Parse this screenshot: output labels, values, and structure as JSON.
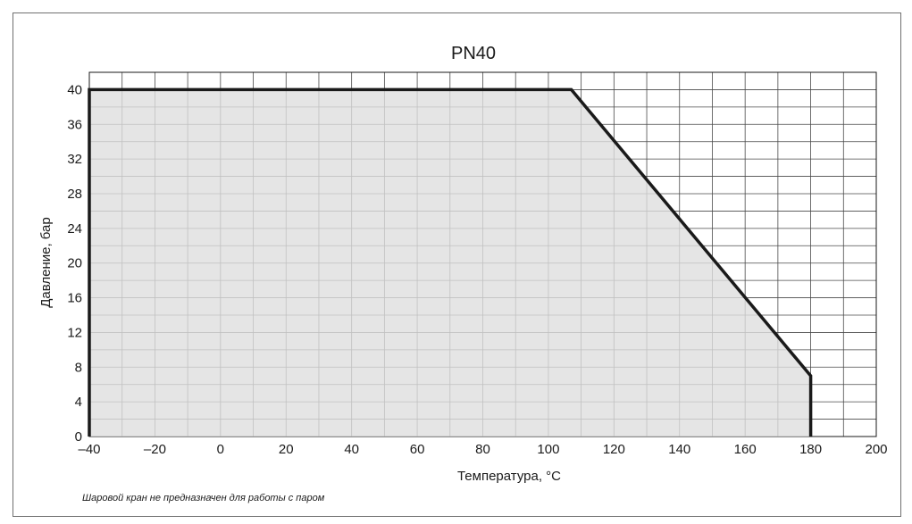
{
  "chart_data": {
    "type": "area",
    "title": "PN40",
    "xlabel": "Температура, °C",
    "ylabel": "Давление, бар",
    "xlim": [
      -40,
      200
    ],
    "ylim": [
      0,
      42
    ],
    "x_ticks": [
      -40,
      -20,
      0,
      20,
      40,
      60,
      80,
      100,
      120,
      140,
      160,
      180,
      200
    ],
    "x_tick_labels": [
      "–40",
      "–20",
      "0",
      "20",
      "40",
      "60",
      "80",
      "100",
      "120",
      "140",
      "160",
      "180",
      "200"
    ],
    "y_ticks": [
      0,
      4,
      8,
      12,
      16,
      20,
      24,
      28,
      32,
      36,
      40
    ],
    "y_tick_labels": [
      "0",
      "4",
      "8",
      "12",
      "16",
      "20",
      "24",
      "28",
      "32",
      "36",
      "40"
    ],
    "grid": true,
    "series": [
      {
        "x": [
          -40,
          107,
          180,
          180
        ],
        "y": [
          40,
          40,
          7,
          0
        ]
      }
    ],
    "fill_color": "#dedede",
    "line_color": "#1a1a1a",
    "grid_color": "#4a4a4a"
  },
  "footnote": "Шаровой кран не предназначен для работы с паром"
}
